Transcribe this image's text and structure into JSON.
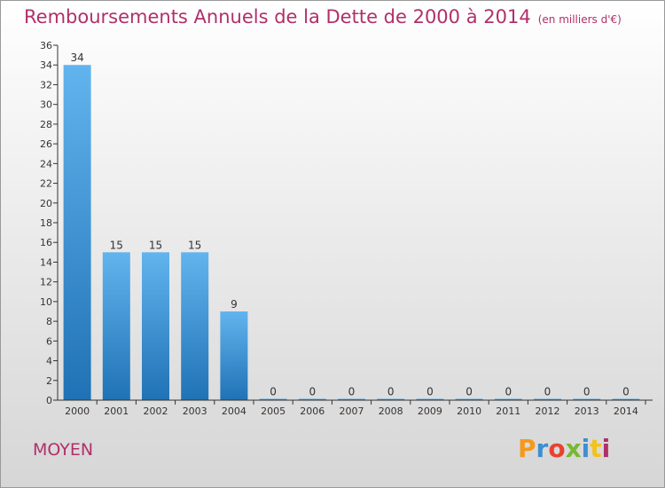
{
  "header": {
    "title": "Remboursements Annuels de la Dette de 2000 à 2014",
    "unit": "(en milliers d'€)"
  },
  "footer": {
    "commune": "MOYEN",
    "logo_letters": [
      "P",
      "r",
      "o",
      "x",
      "i",
      "t",
      "i"
    ],
    "logo_colors": [
      "#f39a1c",
      "#3c8fd0",
      "#e8432f",
      "#78b832",
      "#3c8fd0",
      "#f3c21c",
      "#b0306a"
    ]
  },
  "colors": {
    "accent": "#b0306a",
    "bar_top": "#62b4ee",
    "bar_bottom": "#1f72b5",
    "axis": "#333333"
  },
  "chart_data": {
    "type": "bar",
    "title": "Remboursements Annuels de la Dette de 2000 à 2014",
    "xlabel": "",
    "ylabel": "",
    "categories": [
      "2000",
      "2001",
      "2002",
      "2003",
      "2004",
      "2005",
      "2006",
      "2007",
      "2008",
      "2009",
      "2010",
      "2011",
      "2012",
      "2013",
      "2014"
    ],
    "values": [
      34,
      15,
      15,
      15,
      9,
      0,
      0,
      0,
      0,
      0,
      0,
      0,
      0,
      0,
      0
    ],
    "data_labels": [
      "34",
      "15",
      "15",
      "15",
      "9",
      "0",
      "0",
      "0",
      "0",
      "0",
      "0",
      "0",
      "0",
      "0",
      "0"
    ],
    "ylim": [
      0,
      36
    ],
    "yticks": [
      0,
      2,
      4,
      6,
      8,
      10,
      12,
      14,
      16,
      18,
      20,
      22,
      24,
      26,
      28,
      30,
      32,
      34,
      36
    ],
    "grid": false,
    "legend": "none"
  }
}
